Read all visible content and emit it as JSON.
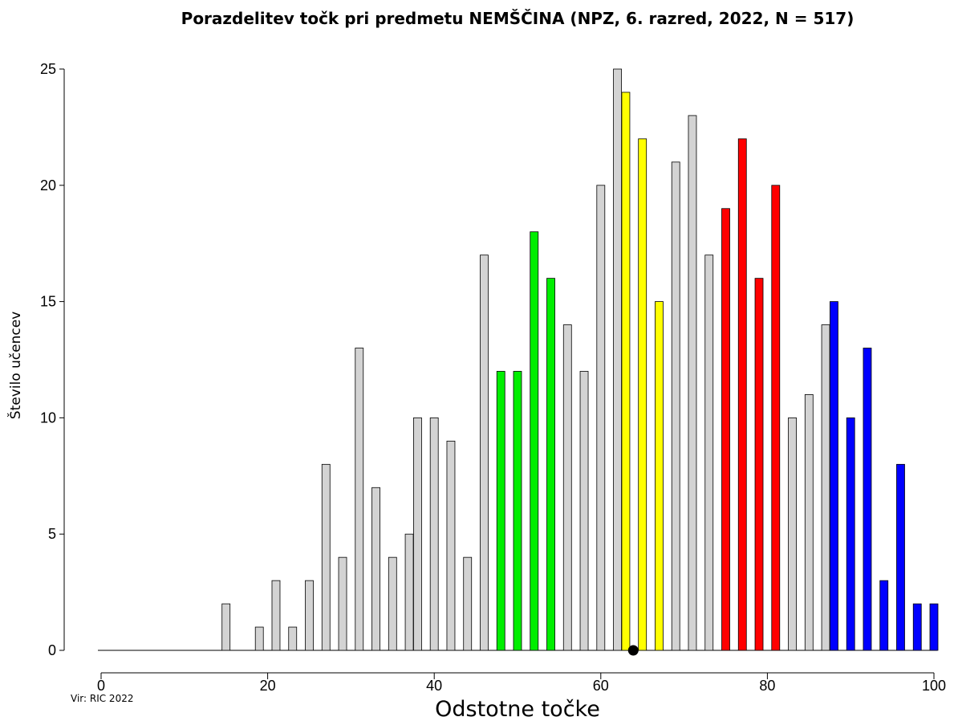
{
  "chart_data": {
    "type": "bar",
    "title": "Porazdelitev točk pri predmetu NEMŠČINA (NPZ, 6. razred, 2022, N = 517)",
    "xlabel": "Odstotne točke",
    "ylabel": "Število učencev",
    "source": "Vir: RIC 2022",
    "xlim": [
      0,
      100
    ],
    "ylim": [
      0,
      25
    ],
    "x_ticks": [
      0,
      20,
      40,
      60,
      80,
      100
    ],
    "y_ticks": [
      0,
      5,
      10,
      15,
      20,
      25
    ],
    "grid": false,
    "mean": 63.9,
    "colors": {
      "gray": "#d3d3d3",
      "green": "#00ee00",
      "yellow": "#ffff00",
      "red": "#ff0000",
      "blue": "#0000ff"
    },
    "bars": [
      {
        "x": 15,
        "value": 2,
        "color": "gray"
      },
      {
        "x": 19,
        "value": 1,
        "color": "gray"
      },
      {
        "x": 21,
        "value": 3,
        "color": "gray"
      },
      {
        "x": 23,
        "value": 1,
        "color": "gray"
      },
      {
        "x": 25,
        "value": 3,
        "color": "gray"
      },
      {
        "x": 27,
        "value": 8,
        "color": "gray"
      },
      {
        "x": 29,
        "value": 4,
        "color": "gray"
      },
      {
        "x": 31,
        "value": 13,
        "color": "gray"
      },
      {
        "x": 33,
        "value": 7,
        "color": "gray"
      },
      {
        "x": 35,
        "value": 4,
        "color": "gray"
      },
      {
        "x": 37,
        "value": 5,
        "color": "gray"
      },
      {
        "x": 38,
        "value": 10,
        "color": "gray"
      },
      {
        "x": 40,
        "value": 10,
        "color": "gray"
      },
      {
        "x": 42,
        "value": 9,
        "color": "gray"
      },
      {
        "x": 44,
        "value": 4,
        "color": "gray"
      },
      {
        "x": 46,
        "value": 17,
        "color": "gray"
      },
      {
        "x": 48,
        "value": 12,
        "color": "green"
      },
      {
        "x": 50,
        "value": 12,
        "color": "green"
      },
      {
        "x": 52,
        "value": 18,
        "color": "green"
      },
      {
        "x": 54,
        "value": 16,
        "color": "green"
      },
      {
        "x": 56,
        "value": 14,
        "color": "gray"
      },
      {
        "x": 58,
        "value": 12,
        "color": "gray"
      },
      {
        "x": 60,
        "value": 20,
        "color": "gray"
      },
      {
        "x": 62,
        "value": 25,
        "color": "gray"
      },
      {
        "x": 63,
        "value": 24,
        "color": "yellow"
      },
      {
        "x": 65,
        "value": 22,
        "color": "yellow"
      },
      {
        "x": 67,
        "value": 15,
        "color": "yellow"
      },
      {
        "x": 69,
        "value": 21,
        "color": "gray"
      },
      {
        "x": 71,
        "value": 23,
        "color": "gray"
      },
      {
        "x": 73,
        "value": 17,
        "color": "gray"
      },
      {
        "x": 75,
        "value": 19,
        "color": "red"
      },
      {
        "x": 77,
        "value": 22,
        "color": "red"
      },
      {
        "x": 79,
        "value": 16,
        "color": "red"
      },
      {
        "x": 81,
        "value": 20,
        "color": "red"
      },
      {
        "x": 83,
        "value": 10,
        "color": "gray"
      },
      {
        "x": 85,
        "value": 11,
        "color": "gray"
      },
      {
        "x": 87,
        "value": 14,
        "color": "gray"
      },
      {
        "x": 88,
        "value": 15,
        "color": "blue"
      },
      {
        "x": 90,
        "value": 10,
        "color": "blue"
      },
      {
        "x": 92,
        "value": 13,
        "color": "blue"
      },
      {
        "x": 94,
        "value": 3,
        "color": "blue"
      },
      {
        "x": 96,
        "value": 8,
        "color": "blue"
      },
      {
        "x": 98,
        "value": 2,
        "color": "blue"
      },
      {
        "x": 100,
        "value": 2,
        "color": "blue"
      }
    ]
  }
}
